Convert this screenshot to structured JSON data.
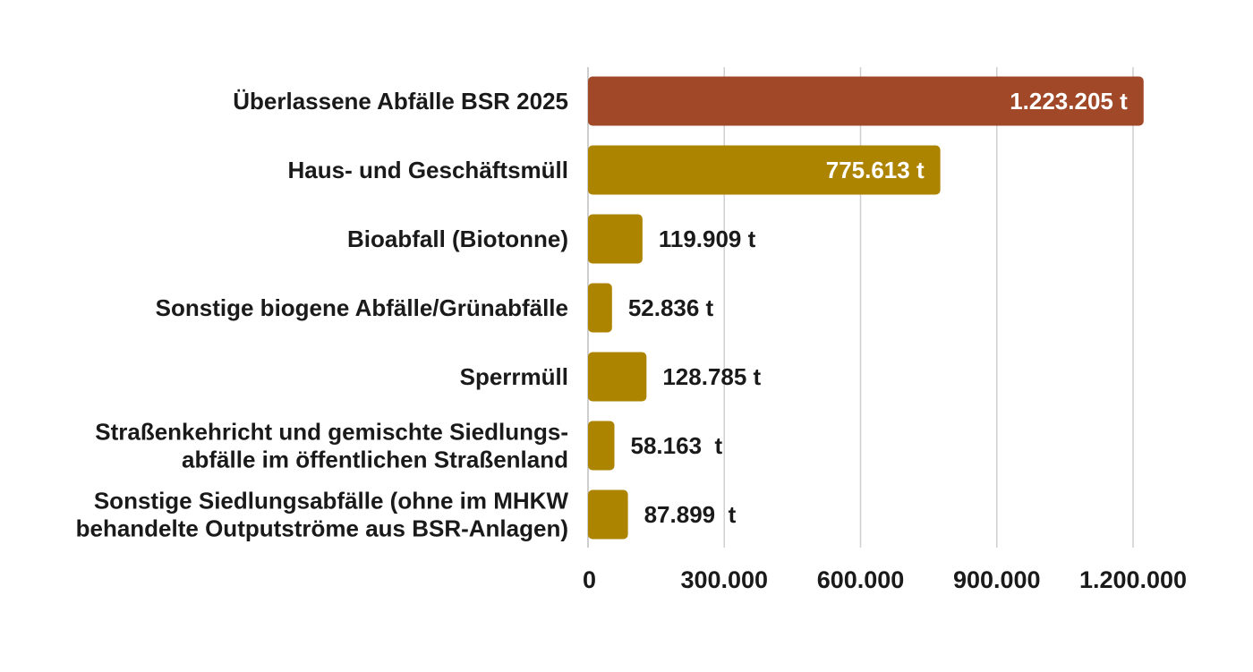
{
  "chart_data": {
    "type": "bar",
    "orientation": "horizontal",
    "categories": [
      [
        "Überlassene Abfälle BSR 2025"
      ],
      [
        "Haus- und Geschäftsmüll"
      ],
      [
        "Bioabfall (Biotonne)"
      ],
      [
        "Sonstige biogene Abfälle/Grünabfälle"
      ],
      [
        "Sperrmüll"
      ],
      [
        "Straßenkehricht und gemischte Siedlungs-",
        "abfälle im öffentlichen Straßenland"
      ],
      [
        "Sonstige Siedlungsabfälle (ohne im MHKW",
        "behandelte Outputströme aus BSR-Anlagen)"
      ]
    ],
    "values": [
      1223205,
      775613,
      119909,
      52836,
      128785,
      58163,
      87899
    ],
    "data_labels": [
      "1.223.205 t",
      "775.613 t",
      "119.909 t",
      "52.836 t",
      "128.785 t",
      "58.163  t",
      "87.899  t"
    ],
    "label_inside": [
      true,
      true,
      false,
      false,
      false,
      false,
      false
    ],
    "colors": [
      "#a04827",
      "#ad8400",
      "#ad8400",
      "#ad8400",
      "#ad8400",
      "#ad8400",
      "#ad8400"
    ],
    "label_colors": {
      "inside": "#ffffff",
      "outside": "#1a1a1a"
    },
    "xlim": [
      0,
      1200000
    ],
    "xticks": [
      0,
      300000,
      600000,
      900000,
      1200000
    ],
    "xtick_labels": [
      "0",
      "300.000",
      "600.000",
      "900.000",
      "1.200.000"
    ],
    "grid": true,
    "legend": false
  }
}
